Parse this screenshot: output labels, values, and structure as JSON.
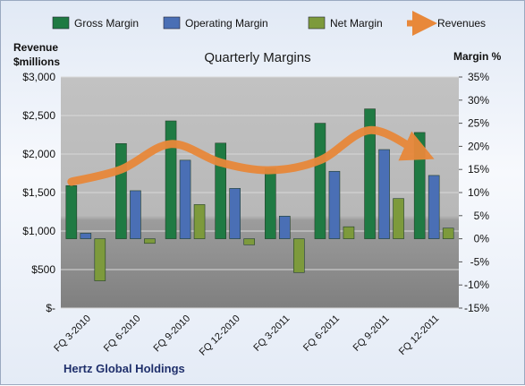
{
  "chart_data": {
    "type": "bar",
    "title": "Quarterly Margins",
    "footer": "Hertz Global Holdings",
    "categories": [
      "FQ 3-2010",
      "FQ 6-2010",
      "FQ 9-2010",
      "FQ 12-2010",
      "FQ 3-2011",
      "FQ 6-2011",
      "FQ 9-2011",
      "FQ 12-2011"
    ],
    "y_left": {
      "label_line1": "Revenue",
      "label_line2": "$millions",
      "ticks": [
        "$-",
        "$500",
        "$1,000",
        "$1,500",
        "$2,000",
        "$2,500",
        "$3,000"
      ],
      "ylim": [
        0,
        3000
      ]
    },
    "y_right": {
      "label": "Margin %",
      "ticks": [
        "-15%",
        "-10%",
        "-5%",
        "0%",
        "5%",
        "10%",
        "15%",
        "20%",
        "25%",
        "30%",
        "35%"
      ],
      "ylim": [
        -15,
        35
      ]
    },
    "series": [
      {
        "name": "Gross Margin",
        "kind": "bar",
        "axis": "right",
        "color": "#1f7a43",
        "values": [
          11.5,
          20.6,
          25.5,
          20.7,
          15.2,
          25.0,
          28.1,
          23.0
        ]
      },
      {
        "name": "Operating Margin",
        "kind": "bar",
        "axis": "right",
        "color": "#4a6fb5",
        "values": [
          1.2,
          10.4,
          17.0,
          10.9,
          4.9,
          14.6,
          19.3,
          13.7
        ]
      },
      {
        "name": "Net Margin",
        "kind": "bar",
        "axis": "right",
        "color": "#7d9a3c",
        "values": [
          -9.1,
          -1.0,
          7.4,
          -1.3,
          -7.3,
          2.6,
          8.7,
          2.3
        ]
      },
      {
        "name": "Revenues",
        "kind": "line",
        "axis": "left",
        "color": "#e8883a",
        "values": [
          1640,
          1800,
          2130,
          1890,
          1790,
          1920,
          2310,
          2020
        ]
      }
    ]
  }
}
